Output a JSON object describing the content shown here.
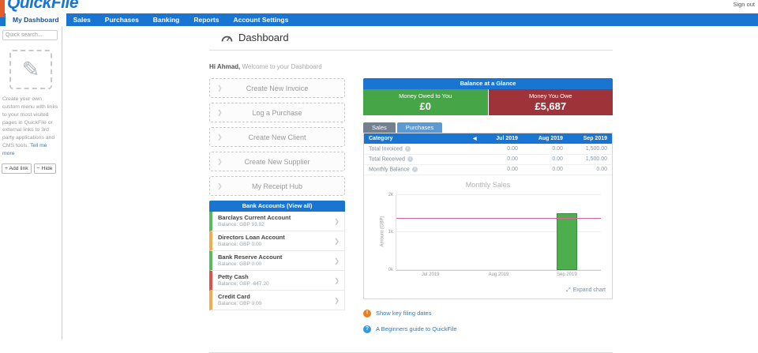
{
  "header": {
    "logo": "QuickFile",
    "sign_out": "Sign out"
  },
  "nav": {
    "items": [
      {
        "label": "My Dashboard",
        "active": true
      },
      {
        "label": "Sales",
        "active": false
      },
      {
        "label": "Purchases",
        "active": false
      },
      {
        "label": "Banking",
        "active": false
      },
      {
        "label": "Reports",
        "active": false
      },
      {
        "label": "Account Settings",
        "active": false
      }
    ]
  },
  "sidebar": {
    "search_placeholder": "Quick search...",
    "description": "Create your own custom menu with links to your most visited pages in QuickFile or external links to 3rd party applications and CMS tools.",
    "tell_me_more": "Tell me more",
    "add_link_button": "+ Add link",
    "hide_button": "− Hide"
  },
  "main": {
    "title": "Dashboard",
    "greeting_name": "Hi Ahmad,",
    "greeting_rest": " Welcome to your Dashboard",
    "quick_actions": [
      "Create New Invoice",
      "Log a Purchase",
      "Create New Client",
      "Create New Supplier",
      "My Receipt Hub"
    ],
    "bank_accounts": {
      "header": "Bank Accounts (View all)",
      "accounts": [
        {
          "name": "Barclays Current Account",
          "balance": "Balance: GBP 93.82",
          "color": "#5cb85c"
        },
        {
          "name": "Directors Loan Account",
          "balance": "Balance: GBP 0.00",
          "color": "#f0ad4e"
        },
        {
          "name": "Bank Reserve Account",
          "balance": "Balance: GBP 0.00",
          "color": "#5cb85c"
        },
        {
          "name": "Petty Cash",
          "balance": "Balance: GBP -647.20",
          "color": "#d9534f"
        },
        {
          "name": "Credit Card",
          "balance": "Balance: GBP 0.00",
          "color": "#f0ad4e"
        }
      ]
    },
    "balance_glance": {
      "header": "Balance at a Glance",
      "owed_label": "Money Owed to You",
      "owed_value": "£0",
      "owe_label": "Money You Owe",
      "owe_value": "£5,687"
    },
    "tabs": [
      {
        "label": "Sales",
        "active": true
      },
      {
        "label": "Purchases",
        "active": false
      }
    ],
    "table": {
      "category_header": "Category",
      "months": [
        "Jul 2019",
        "Aug 2019",
        "Sep 2019"
      ],
      "rows": [
        {
          "label": "Total Invoiced",
          "values": [
            "0.00",
            "0.00",
            "1,500.00"
          ]
        },
        {
          "label": "Total Received",
          "values": [
            "0.00",
            "0.00",
            "1,500.00"
          ]
        },
        {
          "label": "Monthly Balance",
          "values": [
            "0.00",
            "0.00",
            "0.00"
          ]
        }
      ]
    },
    "expand_chart": "Expand chart",
    "links": [
      {
        "label": "Show key filing dates"
      },
      {
        "label": "A Beginners guide to QuickFile"
      }
    ]
  },
  "chart_data": {
    "type": "bar",
    "title": "Monthly Sales",
    "ylabel": "Amount  (GBP)",
    "categories": [
      "Jul 2019",
      "Aug 2019",
      "Sep 2019"
    ],
    "values": [
      0,
      0,
      1500
    ],
    "ylim": [
      0,
      2000
    ],
    "yticks": [
      "0k",
      "1k",
      "2k"
    ],
    "bar_color": "#4cae4c",
    "reference_line": 1350,
    "reference_line_color": "#e0649a",
    "grid": true,
    "legend": false
  },
  "icons": {
    "pencil": "✎",
    "chevron_right": "❯",
    "scroll_left": "◀",
    "expand": "⤢",
    "alert": "!",
    "question": "?",
    "info": "i"
  },
  "colors": {
    "brand_blue": "#1a74d2",
    "money_owed_green": "#46a546",
    "money_owe_red": "#9e3339",
    "link_blue": "#337ab7"
  }
}
